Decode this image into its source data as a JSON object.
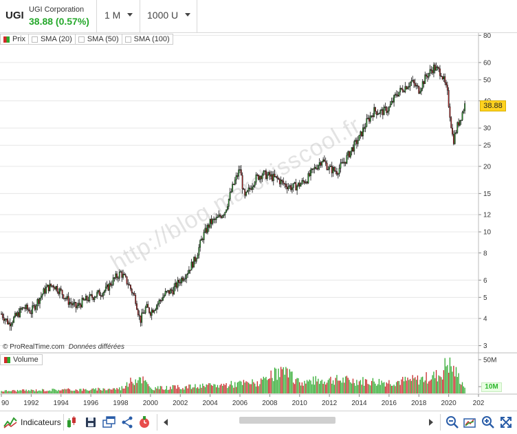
{
  "header": {
    "symbol": "UGI",
    "company": "UGI Corporation",
    "price_change": "38.88 (0.57%)",
    "period_dropdown": "1 M",
    "units_dropdown": "1000 U"
  },
  "legend": {
    "price": "Prix",
    "sma20": "SMA (20)",
    "sma50": "SMA (50)",
    "sma100": "SMA (100)"
  },
  "watermark": "http://blog.marckisscool.fr",
  "copyright": {
    "source": "© ProRealTime.com",
    "delay": "Données différées"
  },
  "volume_label": "Volume",
  "current_price_tag": "38.88",
  "volume_current_tag": "10M",
  "toolbar": {
    "indicators_label": "Indicateurs"
  },
  "colors": {
    "up": "#2faa2f",
    "down": "#c62828",
    "price_tag": "#ffd21f",
    "last_price_text": "#25a82b"
  },
  "chart_data": {
    "type": "candlestick",
    "interval": "1 M",
    "scale": "log",
    "price_ticks": [
      80,
      60,
      50,
      40,
      30,
      25,
      20,
      15,
      12,
      10,
      8,
      6,
      5,
      4,
      3
    ],
    "volume_ticks": [
      "50M",
      "10M"
    ],
    "x_ticks": [
      "90",
      "1992",
      "1994",
      "1996",
      "1998",
      "2000",
      "2002",
      "2004",
      "2006",
      "2008",
      "2010",
      "2012",
      "2014",
      "2016",
      "2018",
      "2020",
      "202"
    ],
    "price_range": [
      2.8,
      82
    ],
    "grid": true,
    "approx_closes_by_year": [
      {
        "x": 1990.0,
        "y": 4.2
      },
      {
        "x": 1990.5,
        "y": 3.8
      },
      {
        "x": 1991.0,
        "y": 4.1
      },
      {
        "x": 1991.5,
        "y": 4.5
      },
      {
        "x": 1992.0,
        "y": 4.3
      },
      {
        "x": 1992.5,
        "y": 4.9
      },
      {
        "x": 1993.0,
        "y": 5.5
      },
      {
        "x": 1993.5,
        "y": 5.7
      },
      {
        "x": 1994.0,
        "y": 5.3
      },
      {
        "x": 1994.5,
        "y": 4.8
      },
      {
        "x": 1995.0,
        "y": 4.5
      },
      {
        "x": 1995.5,
        "y": 4.8
      },
      {
        "x": 1996.0,
        "y": 5.0
      },
      {
        "x": 1996.5,
        "y": 5.2
      },
      {
        "x": 1997.0,
        "y": 5.4
      },
      {
        "x": 1997.5,
        "y": 6.0
      },
      {
        "x": 1998.0,
        "y": 6.5
      },
      {
        "x": 1998.5,
        "y": 5.8
      },
      {
        "x": 1999.0,
        "y": 4.9
      },
      {
        "x": 1999.3,
        "y": 3.9
      },
      {
        "x": 1999.7,
        "y": 4.5
      },
      {
        "x": 2000.0,
        "y": 4.3
      },
      {
        "x": 2000.5,
        "y": 4.7
      },
      {
        "x": 2001.0,
        "y": 5.2
      },
      {
        "x": 2001.5,
        "y": 5.4
      },
      {
        "x": 2002.0,
        "y": 6.0
      },
      {
        "x": 2002.5,
        "y": 6.6
      },
      {
        "x": 2003.0,
        "y": 7.5
      },
      {
        "x": 2003.5,
        "y": 9.5
      },
      {
        "x": 2004.0,
        "y": 11.0
      },
      {
        "x": 2004.5,
        "y": 11.5
      },
      {
        "x": 2005.0,
        "y": 12.5
      },
      {
        "x": 2005.5,
        "y": 16.0
      },
      {
        "x": 2006.0,
        "y": 19.5
      },
      {
        "x": 2006.3,
        "y": 14.2
      },
      {
        "x": 2006.7,
        "y": 16.0
      },
      {
        "x": 2007.0,
        "y": 17.5
      },
      {
        "x": 2007.5,
        "y": 18.5
      },
      {
        "x": 2008.0,
        "y": 18.0
      },
      {
        "x": 2008.5,
        "y": 17.5
      },
      {
        "x": 2009.0,
        "y": 16.5
      },
      {
        "x": 2009.5,
        "y": 16.0
      },
      {
        "x": 2010.0,
        "y": 16.5
      },
      {
        "x": 2010.5,
        "y": 17.5
      },
      {
        "x": 2011.0,
        "y": 19.5
      },
      {
        "x": 2011.5,
        "y": 21.5
      },
      {
        "x": 2012.0,
        "y": 19.5
      },
      {
        "x": 2012.5,
        "y": 19.0
      },
      {
        "x": 2013.0,
        "y": 21.0
      },
      {
        "x": 2013.5,
        "y": 24.0
      },
      {
        "x": 2014.0,
        "y": 27.0
      },
      {
        "x": 2014.5,
        "y": 32.0
      },
      {
        "x": 2015.0,
        "y": 36.0
      },
      {
        "x": 2015.5,
        "y": 35.5
      },
      {
        "x": 2016.0,
        "y": 37.0
      },
      {
        "x": 2016.5,
        "y": 43.0
      },
      {
        "x": 2017.0,
        "y": 46.0
      },
      {
        "x": 2017.5,
        "y": 49.0
      },
      {
        "x": 2018.0,
        "y": 45.0
      },
      {
        "x": 2018.5,
        "y": 52.0
      },
      {
        "x": 2019.0,
        "y": 57.0
      },
      {
        "x": 2019.5,
        "y": 54.0
      },
      {
        "x": 2019.9,
        "y": 44.0
      },
      {
        "x": 2020.1,
        "y": 34.0
      },
      {
        "x": 2020.3,
        "y": 26.0
      },
      {
        "x": 2020.6,
        "y": 31.0
      },
      {
        "x": 2020.9,
        "y": 35.0
      },
      {
        "x": 2021.1,
        "y": 38.88
      }
    ],
    "volume_millions_by_year": [
      {
        "x": 1990,
        "y": 4
      },
      {
        "x": 1992,
        "y": 5
      },
      {
        "x": 1994,
        "y": 6
      },
      {
        "x": 1996,
        "y": 6
      },
      {
        "x": 1998,
        "y": 8
      },
      {
        "x": 1999.3,
        "y": 28
      },
      {
        "x": 2000,
        "y": 8
      },
      {
        "x": 2002,
        "y": 10
      },
      {
        "x": 2004,
        "y": 12
      },
      {
        "x": 2006,
        "y": 16
      },
      {
        "x": 2007.5,
        "y": 18
      },
      {
        "x": 2008.8,
        "y": 36
      },
      {
        "x": 2010,
        "y": 18
      },
      {
        "x": 2012,
        "y": 22
      },
      {
        "x": 2014,
        "y": 20
      },
      {
        "x": 2016,
        "y": 18
      },
      {
        "x": 2018,
        "y": 22
      },
      {
        "x": 2019.5,
        "y": 30
      },
      {
        "x": 2019.9,
        "y": 50
      },
      {
        "x": 2020.5,
        "y": 32
      },
      {
        "x": 2021.1,
        "y": 10
      }
    ]
  }
}
